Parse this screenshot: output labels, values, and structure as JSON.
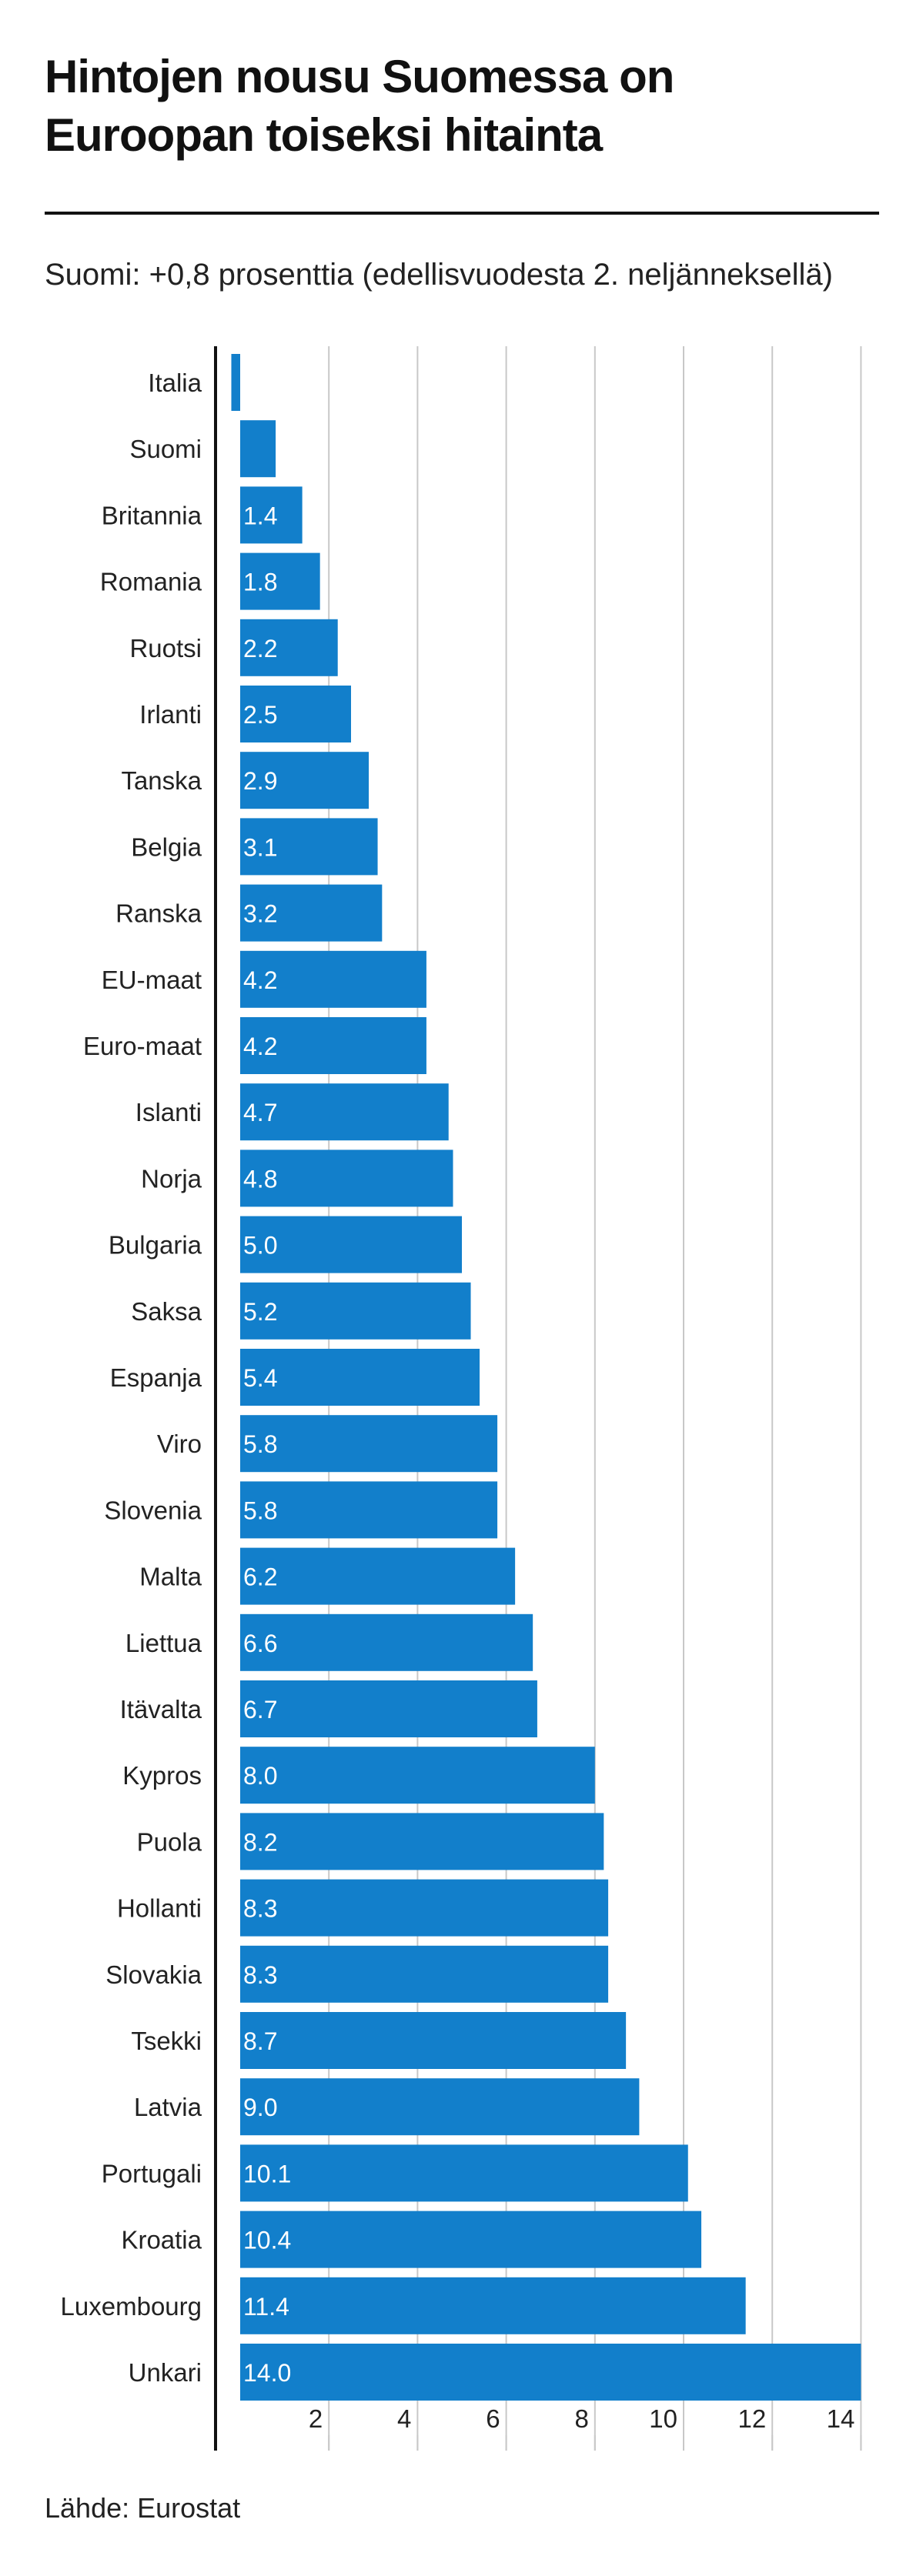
{
  "title": "Hintojen nousu Suomessa on Euroopan toiseksi hitainta",
  "subtitle": "Suomi: +0,8 prosenttia (edellisvuodesta 2. neljänneksellä)",
  "source": "Lähde: Eurostat",
  "colors": {
    "bar": "#127fcb",
    "grid": "#c8c8c8",
    "axis": "#111111"
  },
  "chart_data": {
    "type": "bar",
    "orientation": "horizontal",
    "title": "Hintojen nousu Suomessa on Euroopan toiseksi hitainta",
    "subtitle": "Suomi: +0,8 prosenttia (edellisvuodesta 2. neljänneksellä)",
    "xlabel": "",
    "ylabel": "",
    "xlim": [
      -0.6,
      14
    ],
    "xticks": [
      2,
      4,
      6,
      8,
      10,
      12,
      14
    ],
    "grid": true,
    "categories": [
      "Italia",
      "Suomi",
      "Britannia",
      "Romania",
      "Ruotsi",
      "Irlanti",
      "Tanska",
      "Belgia",
      "Ranska",
      "EU-maat",
      "Euro-maat",
      "Islanti",
      "Norja",
      "Bulgaria",
      "Saksa",
      "Espanja",
      "Viro",
      "Slovenia",
      "Malta",
      "Liettua",
      "Itävalta",
      "Kypros",
      "Puola",
      "Hollanti",
      "Slovakia",
      "Tsekki",
      "Latvia",
      "Portugali",
      "Kroatia",
      "Luxembourg",
      "Unkari"
    ],
    "values": [
      -0.2,
      0.8,
      1.4,
      1.8,
      2.2,
      2.5,
      2.9,
      3.1,
      3.2,
      4.2,
      4.2,
      4.7,
      4.8,
      5.0,
      5.2,
      5.4,
      5.8,
      5.8,
      6.2,
      6.6,
      6.7,
      8.0,
      8.2,
      8.3,
      8.3,
      8.7,
      9.0,
      10.1,
      10.4,
      11.4,
      14.0
    ],
    "labels": [
      "",
      "",
      "1.4",
      "1.8",
      "2.2",
      "2.5",
      "2.9",
      "3.1",
      "3.2",
      "4.2",
      "4.2",
      "4.7",
      "4.8",
      "5.0",
      "5.2",
      "5.4",
      "5.8",
      "5.8",
      "6.2",
      "6.6",
      "6.7",
      "8.0",
      "8.2",
      "8.3",
      "8.3",
      "8.7",
      "9.0",
      "10.1",
      "10.4",
      "11.4",
      "14.0"
    ],
    "source": "Lähde: Eurostat"
  }
}
